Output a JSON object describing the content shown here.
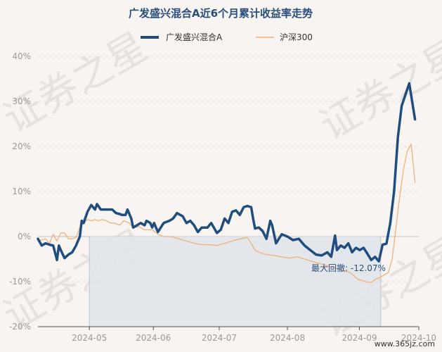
{
  "chart_data": {
    "type": "line",
    "title": "广发盛兴混合A近6个月累计收益率走势",
    "legend_position": "top-center",
    "grid": true,
    "ylim": [
      -20,
      40
    ],
    "yticks": [
      40,
      30,
      20,
      10,
      0,
      -10,
      -20
    ],
    "ytick_labels": [
      "40%",
      "30%",
      "20%",
      "10%",
      "0%",
      "-10%",
      "-20%"
    ],
    "xtick_labels": [
      {
        "label": "2024-05",
        "t": 0.135
      },
      {
        "label": "2024-06",
        "t": 0.303
      },
      {
        "label": "2024-07",
        "t": 0.476
      },
      {
        "label": "2024-08",
        "t": 0.655
      },
      {
        "label": "2024-09",
        "t": 0.844
      },
      {
        "label": "2024-10",
        "t": 1.0
      }
    ],
    "series": [
      {
        "name": "广发盛兴混合A",
        "color": "#1f4e7e",
        "points": [
          [
            0,
            -0.5
          ],
          [
            0.01,
            -2
          ],
          [
            0.02,
            -1.5
          ],
          [
            0.03,
            -1.8
          ],
          [
            0.04,
            -2
          ],
          [
            0.05,
            -5.2
          ],
          [
            0.055,
            -2
          ],
          [
            0.06,
            -3
          ],
          [
            0.07,
            -4.8
          ],
          [
            0.08,
            -4
          ],
          [
            0.09,
            -3.5
          ],
          [
            0.1,
            -2
          ],
          [
            0.11,
            0
          ],
          [
            0.115,
            3.5
          ],
          [
            0.12,
            3
          ],
          [
            0.13,
            5.5
          ],
          [
            0.14,
            7
          ],
          [
            0.15,
            6
          ],
          [
            0.155,
            7.2
          ],
          [
            0.165,
            6
          ],
          [
            0.18,
            6
          ],
          [
            0.195,
            6
          ],
          [
            0.205,
            5.2
          ],
          [
            0.215,
            5
          ],
          [
            0.22,
            4.8
          ],
          [
            0.23,
            4.8
          ],
          [
            0.235,
            6
          ],
          [
            0.245,
            4
          ],
          [
            0.25,
            2
          ],
          [
            0.26,
            2.5
          ],
          [
            0.27,
            3
          ],
          [
            0.28,
            2.5
          ],
          [
            0.285,
            3.5
          ],
          [
            0.295,
            3
          ],
          [
            0.3,
            2
          ],
          [
            0.305,
            3
          ],
          [
            0.315,
            1
          ],
          [
            0.33,
            3
          ],
          [
            0.345,
            3.5
          ],
          [
            0.355,
            4
          ],
          [
            0.365,
            5.2
          ],
          [
            0.38,
            4.5
          ],
          [
            0.39,
            3
          ],
          [
            0.4,
            3.5
          ],
          [
            0.41,
            2.5
          ],
          [
            0.42,
            1
          ],
          [
            0.43,
            2
          ],
          [
            0.445,
            2
          ],
          [
            0.455,
            3
          ],
          [
            0.47,
            0.8
          ],
          [
            0.48,
            1.5
          ],
          [
            0.49,
            4
          ],
          [
            0.5,
            3
          ],
          [
            0.51,
            5.5
          ],
          [
            0.52,
            5.8
          ],
          [
            0.53,
            4.8
          ],
          [
            0.54,
            6.5
          ],
          [
            0.55,
            6.8
          ],
          [
            0.56,
            6.5
          ],
          [
            0.565,
            4
          ],
          [
            0.57,
            1.8
          ],
          [
            0.58,
            2
          ],
          [
            0.59,
            1.2
          ],
          [
            0.6,
            -0.5
          ],
          [
            0.61,
            3.5
          ],
          [
            0.615,
            2.5
          ],
          [
            0.625,
            -1.5
          ],
          [
            0.64,
            0.5
          ],
          [
            0.655,
            0
          ],
          [
            0.67,
            -0.8
          ],
          [
            0.685,
            -0.5
          ],
          [
            0.7,
            -2
          ],
          [
            0.715,
            -3
          ],
          [
            0.73,
            -4
          ],
          [
            0.745,
            -4.2
          ],
          [
            0.76,
            -3.5
          ],
          [
            0.77,
            -4.5
          ],
          [
            0.78,
            0.2
          ],
          [
            0.785,
            -3
          ],
          [
            0.795,
            -2
          ],
          [
            0.805,
            -2.5
          ],
          [
            0.815,
            -1.5
          ],
          [
            0.825,
            -3.5
          ],
          [
            0.835,
            -2.5
          ],
          [
            0.845,
            -3
          ],
          [
            0.855,
            -2.5
          ],
          [
            0.865,
            -3.8
          ],
          [
            0.875,
            -5.2
          ],
          [
            0.885,
            -4.5
          ],
          [
            0.895,
            -5.5
          ],
          [
            0.905,
            -1.8
          ],
          [
            0.915,
            -1.6
          ],
          [
            0.925,
            3
          ],
          [
            0.935,
            10
          ],
          [
            0.945,
            22
          ],
          [
            0.955,
            29
          ],
          [
            0.965,
            31.5
          ],
          [
            0.975,
            34
          ],
          [
            0.99,
            26
          ]
        ]
      },
      {
        "name": "沪深300",
        "color": "#f0b07a",
        "points": [
          [
            0,
            -1
          ],
          [
            0.02,
            -0.5
          ],
          [
            0.03,
            -1.5
          ],
          [
            0.04,
            0.5
          ],
          [
            0.05,
            -1
          ],
          [
            0.06,
            0.8
          ],
          [
            0.07,
            0.8
          ],
          [
            0.08,
            -0.5
          ],
          [
            0.09,
            -0.5
          ],
          [
            0.1,
            -0.2
          ],
          [
            0.11,
            2
          ],
          [
            0.12,
            3
          ],
          [
            0.13,
            3.8
          ],
          [
            0.14,
            3.5
          ],
          [
            0.15,
            3.8
          ],
          [
            0.16,
            3.5
          ],
          [
            0.17,
            3.8
          ],
          [
            0.18,
            3.5
          ],
          [
            0.19,
            3
          ],
          [
            0.2,
            3
          ],
          [
            0.215,
            2.5
          ],
          [
            0.225,
            3.5
          ],
          [
            0.24,
            3
          ],
          [
            0.25,
            2
          ],
          [
            0.265,
            2.2
          ],
          [
            0.28,
            1.5
          ],
          [
            0.3,
            1.5
          ],
          [
            0.315,
            0.5
          ],
          [
            0.33,
            0
          ],
          [
            0.35,
            0
          ],
          [
            0.37,
            -0.5
          ],
          [
            0.39,
            -1
          ],
          [
            0.41,
            -1.5
          ],
          [
            0.43,
            -1.8
          ],
          [
            0.45,
            -1.8
          ],
          [
            0.47,
            -2
          ],
          [
            0.49,
            -1.5
          ],
          [
            0.51,
            -1
          ],
          [
            0.53,
            -0.5
          ],
          [
            0.55,
            -0.2
          ],
          [
            0.56,
            -1.5
          ],
          [
            0.57,
            -3
          ],
          [
            0.58,
            -3.5
          ],
          [
            0.6,
            -4
          ],
          [
            0.62,
            -4.2
          ],
          [
            0.64,
            -4.5
          ],
          [
            0.66,
            -4.8
          ],
          [
            0.68,
            -4.5
          ],
          [
            0.7,
            -5
          ],
          [
            0.72,
            -5.5
          ],
          [
            0.74,
            -6
          ],
          [
            0.76,
            -6.5
          ],
          [
            0.78,
            -7
          ],
          [
            0.8,
            -7.5
          ],
          [
            0.82,
            -8
          ],
          [
            0.84,
            -9.5
          ],
          [
            0.86,
            -10
          ],
          [
            0.875,
            -10.2
          ],
          [
            0.885,
            -9.5
          ],
          [
            0.9,
            -9
          ],
          [
            0.91,
            -8.5
          ],
          [
            0.92,
            -8
          ],
          [
            0.93,
            -5
          ],
          [
            0.94,
            2
          ],
          [
            0.95,
            9
          ],
          [
            0.96,
            15
          ],
          [
            0.97,
            19
          ],
          [
            0.98,
            20.5
          ],
          [
            0.99,
            12
          ]
        ]
      }
    ],
    "annotation": {
      "text": "最大回撤: -12.07%",
      "drawdown_span": [
        0.135,
        0.9
      ]
    }
  },
  "watermark": "证券之星",
  "footer": "www.365jz.com"
}
